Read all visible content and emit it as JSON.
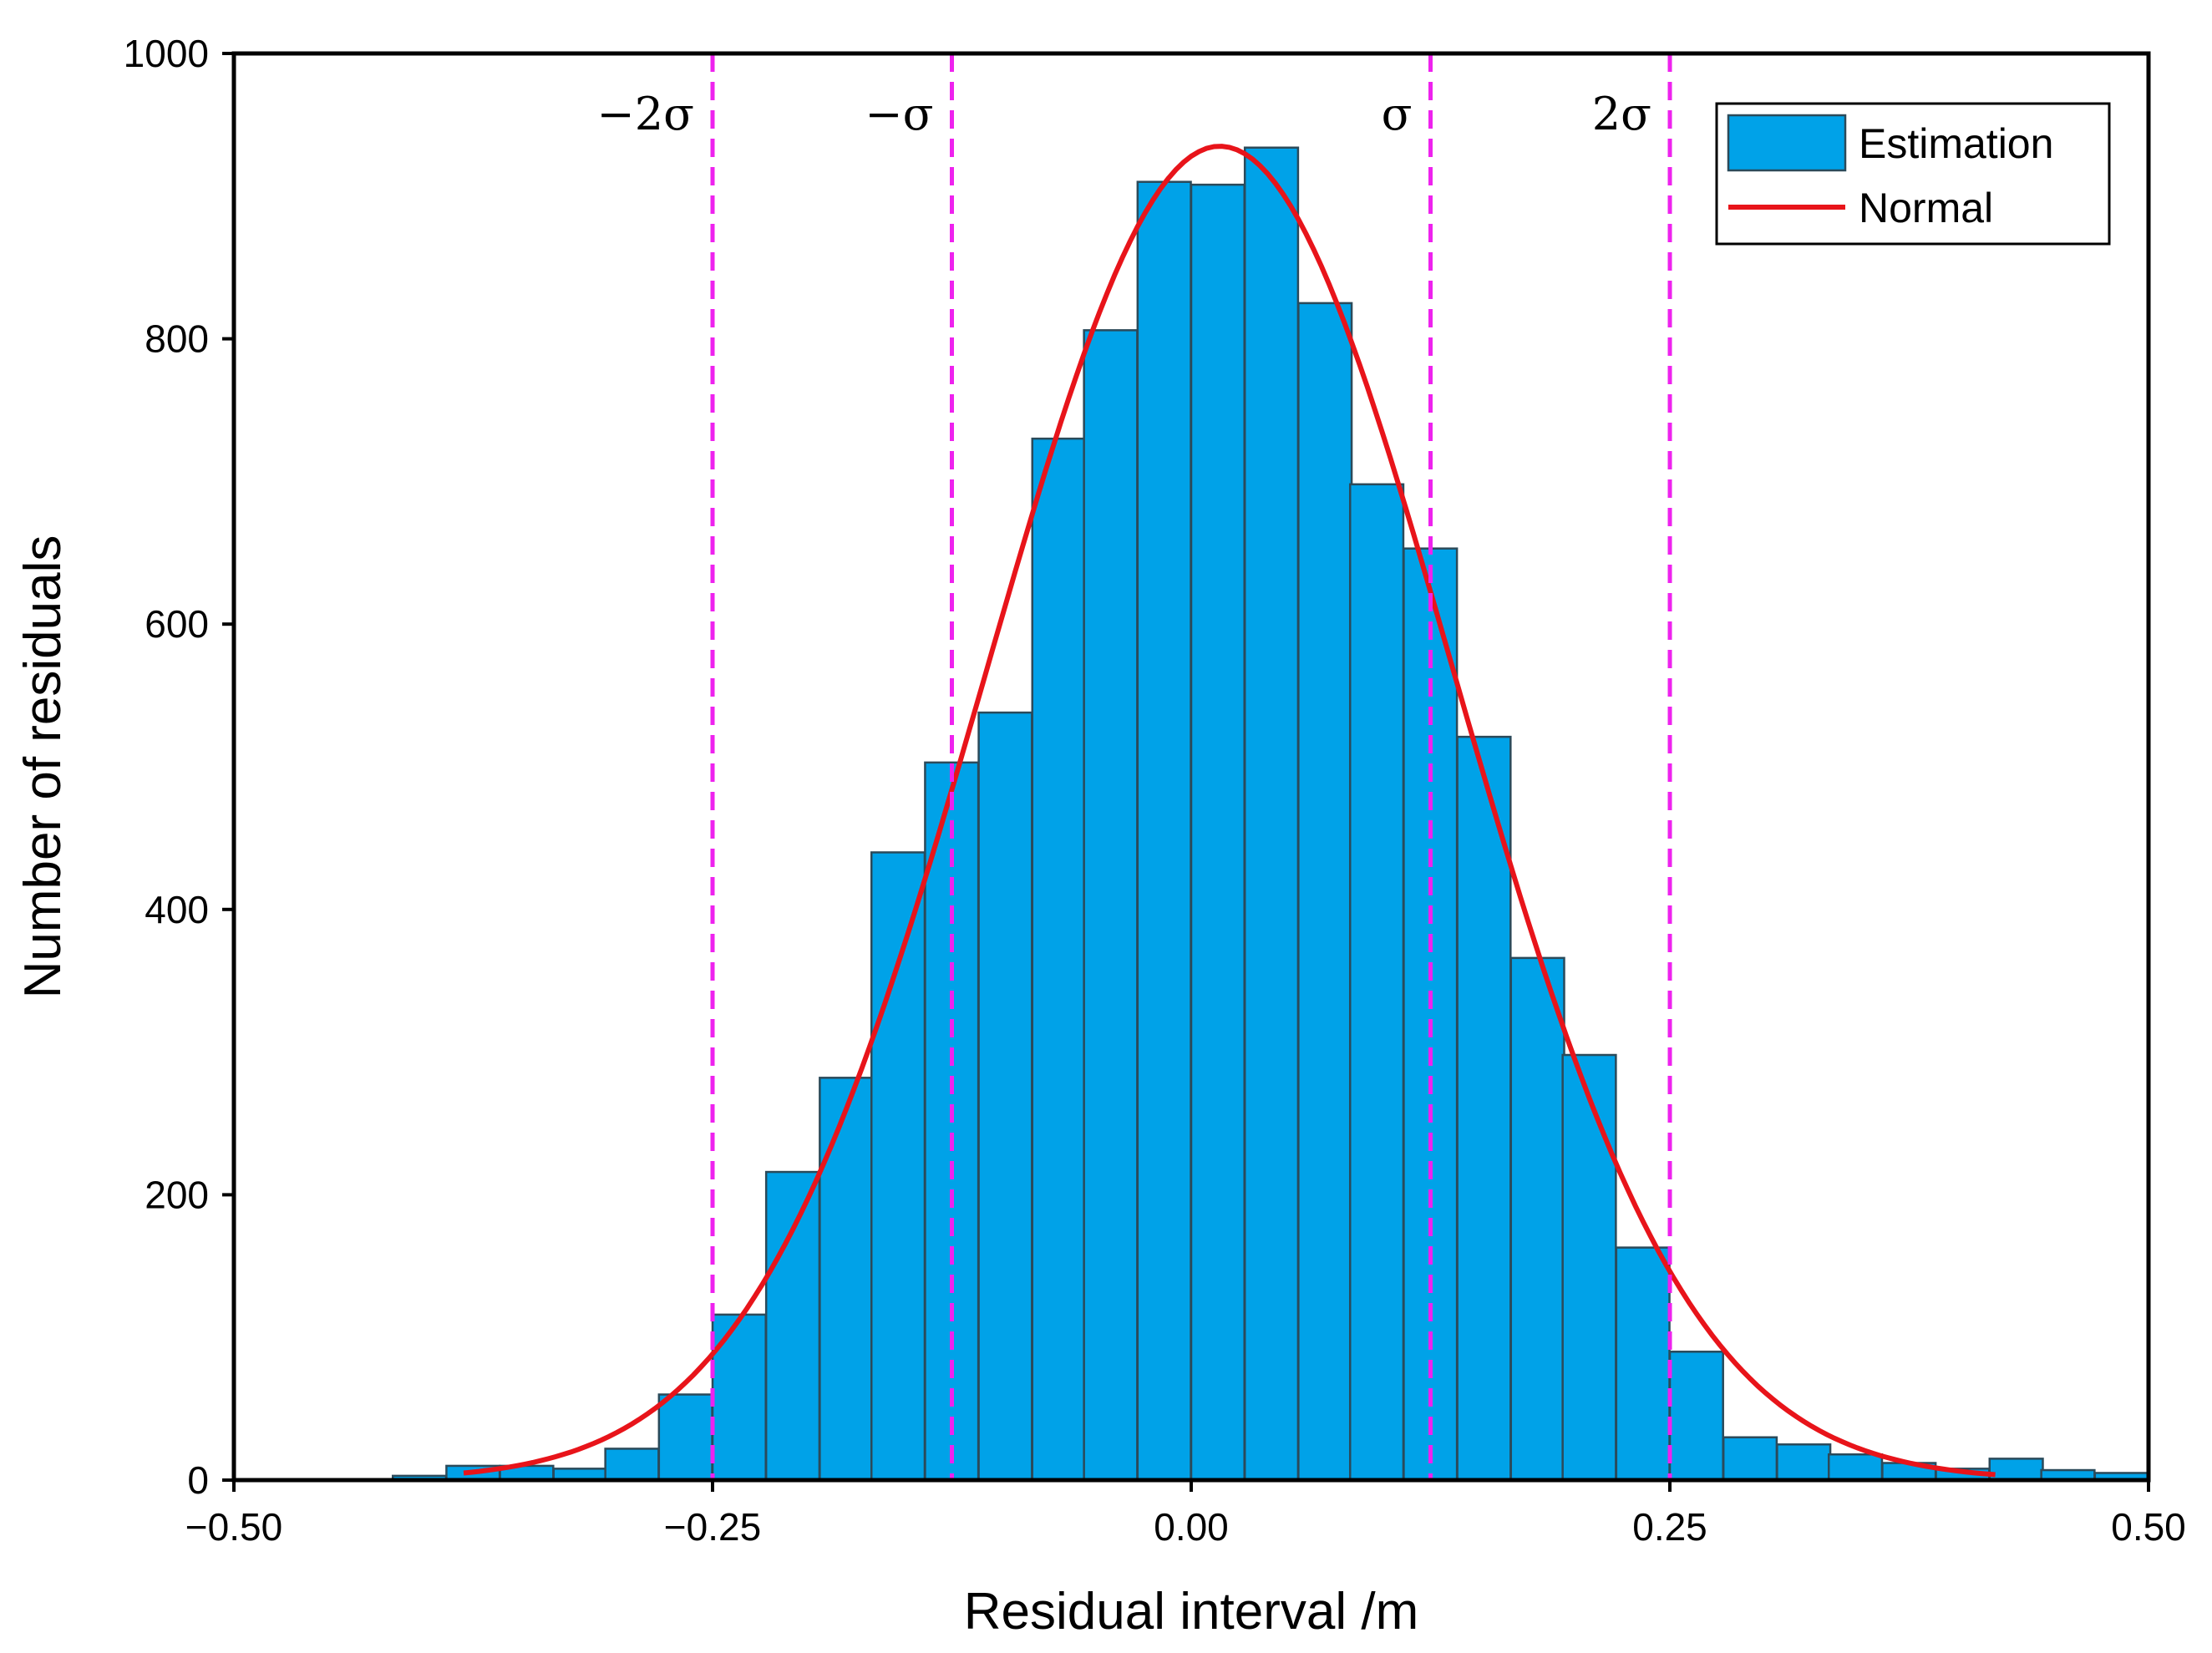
{
  "chart_data": {
    "type": "bar",
    "title": "",
    "xlabel": "Residual interval /m",
    "ylabel": "Number of residuals",
    "xlim": [
      -0.5,
      0.5
    ],
    "ylim": [
      0,
      1000
    ],
    "xticks": [
      -0.5,
      -0.25,
      0.0,
      0.25,
      0.5
    ],
    "xtick_labels": [
      "−0.50",
      "−0.25",
      "0.00",
      "0.25",
      "0.50"
    ],
    "yticks": [
      0,
      200,
      400,
      600,
      800,
      1000
    ],
    "ytick_labels": [
      "0",
      "200",
      "400",
      "600",
      "800",
      "1000"
    ],
    "bin_width": 0.0278,
    "series": [
      {
        "name": "Estimation",
        "kind": "histogram",
        "color": "#00a2e8",
        "bin_starts": [
          -0.417,
          -0.389,
          -0.361,
          -0.333,
          -0.306,
          -0.278,
          -0.25,
          -0.222,
          -0.194,
          -0.167,
          -0.139,
          -0.111,
          -0.083,
          -0.056,
          -0.028,
          0.0,
          0.028,
          0.056,
          0.083,
          0.111,
          0.139,
          0.167,
          0.194,
          0.222,
          0.25,
          0.278,
          0.306,
          0.333,
          0.361,
          0.389,
          0.417,
          0.444,
          0.472
        ],
        "values": [
          3,
          10,
          10,
          8,
          22,
          60,
          116,
          216,
          282,
          440,
          503,
          538,
          730,
          806,
          910,
          908,
          934,
          825,
          698,
          653,
          521,
          366,
          298,
          163,
          90,
          30,
          25,
          18,
          12,
          8,
          15,
          7,
          5
        ]
      },
      {
        "name": "Normal",
        "kind": "line",
        "color": "#e8141a",
        "mean": 0.015,
        "sigma": 0.122,
        "peak": 935,
        "x_range": [
          -0.38,
          0.42
        ]
      }
    ],
    "reference_lines": [
      {
        "x": -0.25,
        "label": "−2σ"
      },
      {
        "x": -0.125,
        "label": "−σ"
      },
      {
        "x": 0.125,
        "label": "σ"
      },
      {
        "x": 0.25,
        "label": "2σ"
      }
    ],
    "reference_line_color": "#ee22ee",
    "legend": {
      "position": "top-right",
      "entries": [
        "Estimation",
        "Normal"
      ]
    }
  }
}
